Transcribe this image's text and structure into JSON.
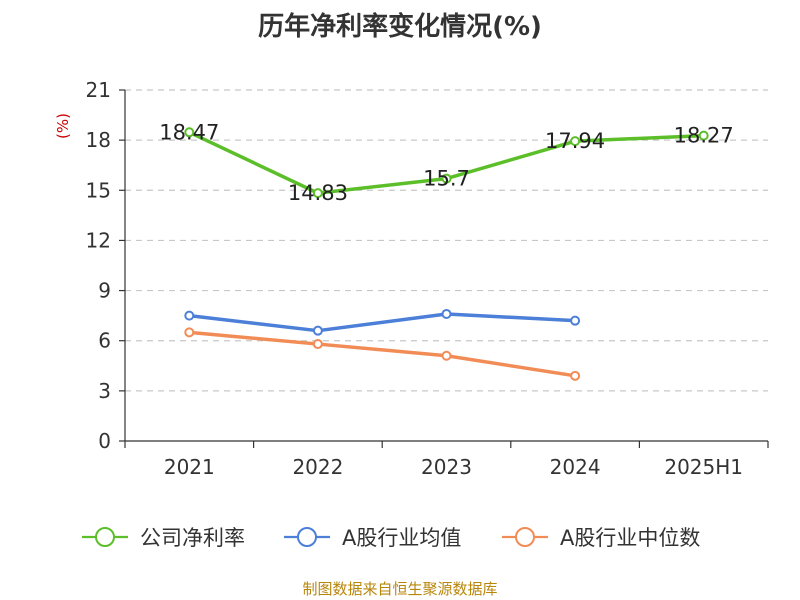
{
  "chart_data": {
    "type": "line",
    "title": "历年净利率变化情况(%)",
    "ylabel": "(%)",
    "categories": [
      "2021",
      "2022",
      "2023",
      "2024",
      "2025H1"
    ],
    "ylim": [
      0,
      21
    ],
    "yticks": [
      0,
      3,
      6,
      9,
      12,
      15,
      18,
      21
    ],
    "grid": true,
    "legend_position": "bottom",
    "series": [
      {
        "name": "公司净利率",
        "color": "#5cbf2a",
        "values": [
          18.47,
          14.83,
          15.7,
          17.94,
          18.27
        ],
        "labels": [
          "18.47",
          "14.83",
          "15.7",
          "17.94",
          "18.27"
        ]
      },
      {
        "name": "A股行业均值",
        "color": "#4b7fd8",
        "values": [
          7.5,
          6.6,
          7.6,
          7.2,
          null
        ]
      },
      {
        "name": "A股行业中位数",
        "color": "#f28c56",
        "values": [
          6.5,
          5.8,
          5.1,
          3.9,
          null
        ]
      }
    ]
  },
  "footer": {
    "source": "制图数据来自恒生聚源数据库"
  }
}
